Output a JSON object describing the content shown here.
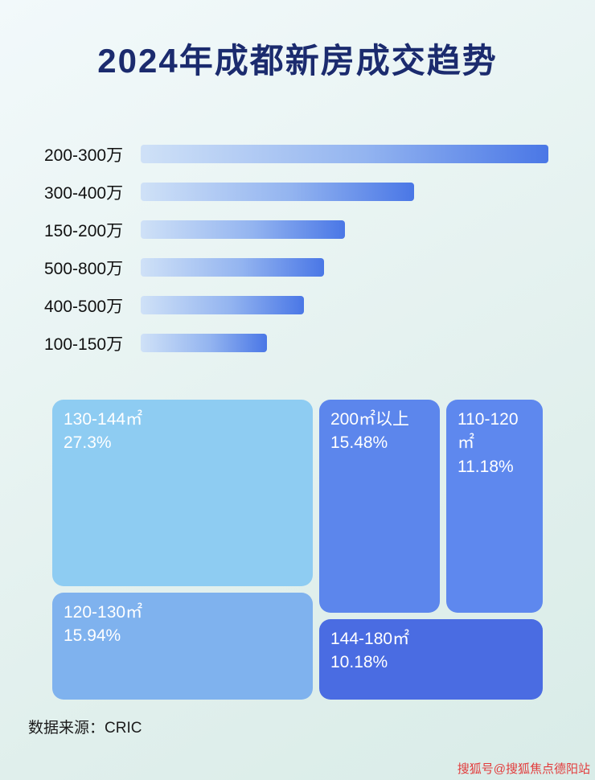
{
  "page": {
    "title": "2024年成都新房成交趋势",
    "source": "数据来源：CRIC",
    "watermark": "搜狐号@搜狐焦点德阳站"
  },
  "chart_data": [
    {
      "type": "bar",
      "orientation": "horizontal",
      "title": "2024年成都新房成交趋势",
      "categories": [
        "200-300万",
        "300-400万",
        "150-200万",
        "500-800万",
        "400-500万",
        "100-150万"
      ],
      "values": [
        100,
        67,
        50,
        45,
        40,
        31
      ],
      "value_unit": "relative bar length, % of longest bar (no numeric labels shown in image)",
      "bar_gradient": [
        "#cfe1f7",
        "#4a77e6"
      ],
      "grid": false,
      "legend": false
    },
    {
      "type": "treemap",
      "items": [
        {
          "label": "130-144㎡",
          "value": 27.3,
          "value_text": "27.3%",
          "color": "#8eccf2"
        },
        {
          "label": "200㎡以上",
          "value": 15.48,
          "value_text": "15.48%",
          "color": "#5c86ec"
        },
        {
          "label": "110-120㎡",
          "value": 11.18,
          "value_text": "11.18%",
          "color": "#5e88ee"
        },
        {
          "label": "120-130㎡",
          "value": 15.94,
          "value_text": "15.94%",
          "color": "#7fb2ee"
        },
        {
          "label": "144-180㎡",
          "value": 10.18,
          "value_text": "10.18%",
          "color": "#4a6ce2"
        }
      ]
    }
  ]
}
